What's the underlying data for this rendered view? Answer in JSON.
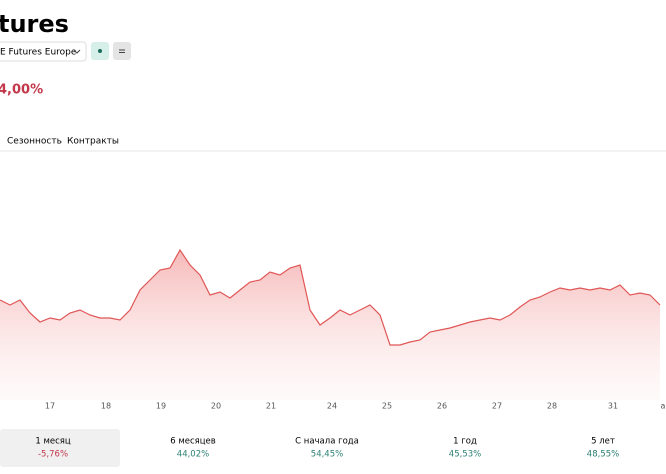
{
  "header": {
    "title": "tures",
    "exchange": "E Futures Europe",
    "change": "4,00%"
  },
  "tabs": [
    "Сезонность",
    "Контракты"
  ],
  "chart_data": {
    "type": "area",
    "color": "#e05656",
    "values": [
      100,
      95,
      100,
      87,
      78,
      82,
      80,
      87,
      90,
      85,
      82,
      82,
      80,
      90,
      110,
      120,
      130,
      132,
      150,
      135,
      125,
      105,
      108,
      102,
      110,
      118,
      120,
      128,
      125,
      132,
      135,
      90,
      75,
      82,
      90,
      85,
      90,
      95,
      85,
      55,
      55,
      58,
      60,
      68,
      70,
      72,
      75,
      78,
      80,
      82,
      80,
      85,
      93,
      100,
      103,
      108,
      112,
      110,
      112,
      110,
      112,
      110,
      115,
      105,
      107,
      105,
      95
    ],
    "xlim": [
      0,
      66.6
    ],
    "ylim": [
      0,
      260
    ],
    "xticks": [
      {
        "value": 5,
        "label": "17"
      },
      {
        "value": 10.6,
        "label": "18"
      },
      {
        "value": 16.1,
        "label": "19"
      },
      {
        "value": 21.6,
        "label": "20"
      },
      {
        "value": 27.1,
        "label": "21"
      },
      {
        "value": 33.2,
        "label": "24"
      },
      {
        "value": 38.7,
        "label": "25"
      },
      {
        "value": 44.2,
        "label": "26"
      },
      {
        "value": 49.7,
        "label": "27"
      },
      {
        "value": 55.2,
        "label": "28"
      },
      {
        "value": 61.3,
        "label": "31"
      },
      {
        "value": 66.3,
        "label": "а"
      }
    ]
  },
  "periods": [
    {
      "label": "1 месяц",
      "value": "-5,76%"
    },
    {
      "label": "6 месяцев",
      "value": "44,02%"
    },
    {
      "label": "С начала года",
      "value": "54,45%"
    },
    {
      "label": "1 год",
      "value": "45,53%"
    },
    {
      "label": "5 лет",
      "value": "48,55%"
    }
  ]
}
